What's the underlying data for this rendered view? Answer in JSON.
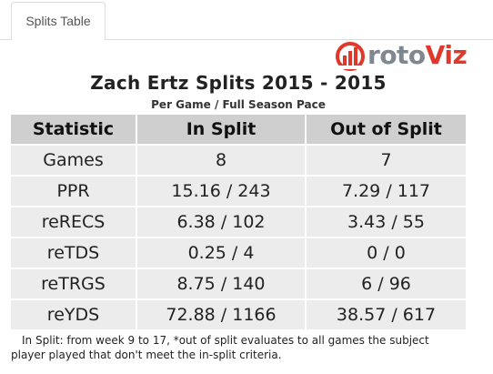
{
  "tabs": [
    {
      "label": "Splits Table"
    }
  ],
  "logo": {
    "text_parts": [
      "r",
      "oto",
      "Viz"
    ]
  },
  "colors": {
    "header_bg": "#cfcfcf",
    "row_bg": "#ececec",
    "logo_red": "#e0382b",
    "logo_gray": "#7f8891"
  },
  "title": "Zach Ertz Splits 2015 - 2015",
  "subtitle": "Per Game / Full Season Pace",
  "table": {
    "headers": [
      "Statistic",
      "In Split",
      "Out of Split"
    ],
    "rows": [
      [
        "Games",
        "8",
        "7"
      ],
      [
        "PPR",
        "15.16 / 243",
        "7.29 / 117"
      ],
      [
        "reRECS",
        "6.38 / 102",
        "3.43 / 55"
      ],
      [
        "reTDS",
        "0.25 / 4",
        "0 / 0"
      ],
      [
        "reTRGS",
        "8.75 / 140",
        "6 / 96"
      ],
      [
        "reYDS",
        "72.88 / 1166",
        "38.57 / 617"
      ]
    ]
  },
  "footnote": {
    "line1": "In Split: from week 9 to 17,  *out of split evaluates to all games the subject",
    "line2": "player played that don't meet the in-split criteria."
  }
}
